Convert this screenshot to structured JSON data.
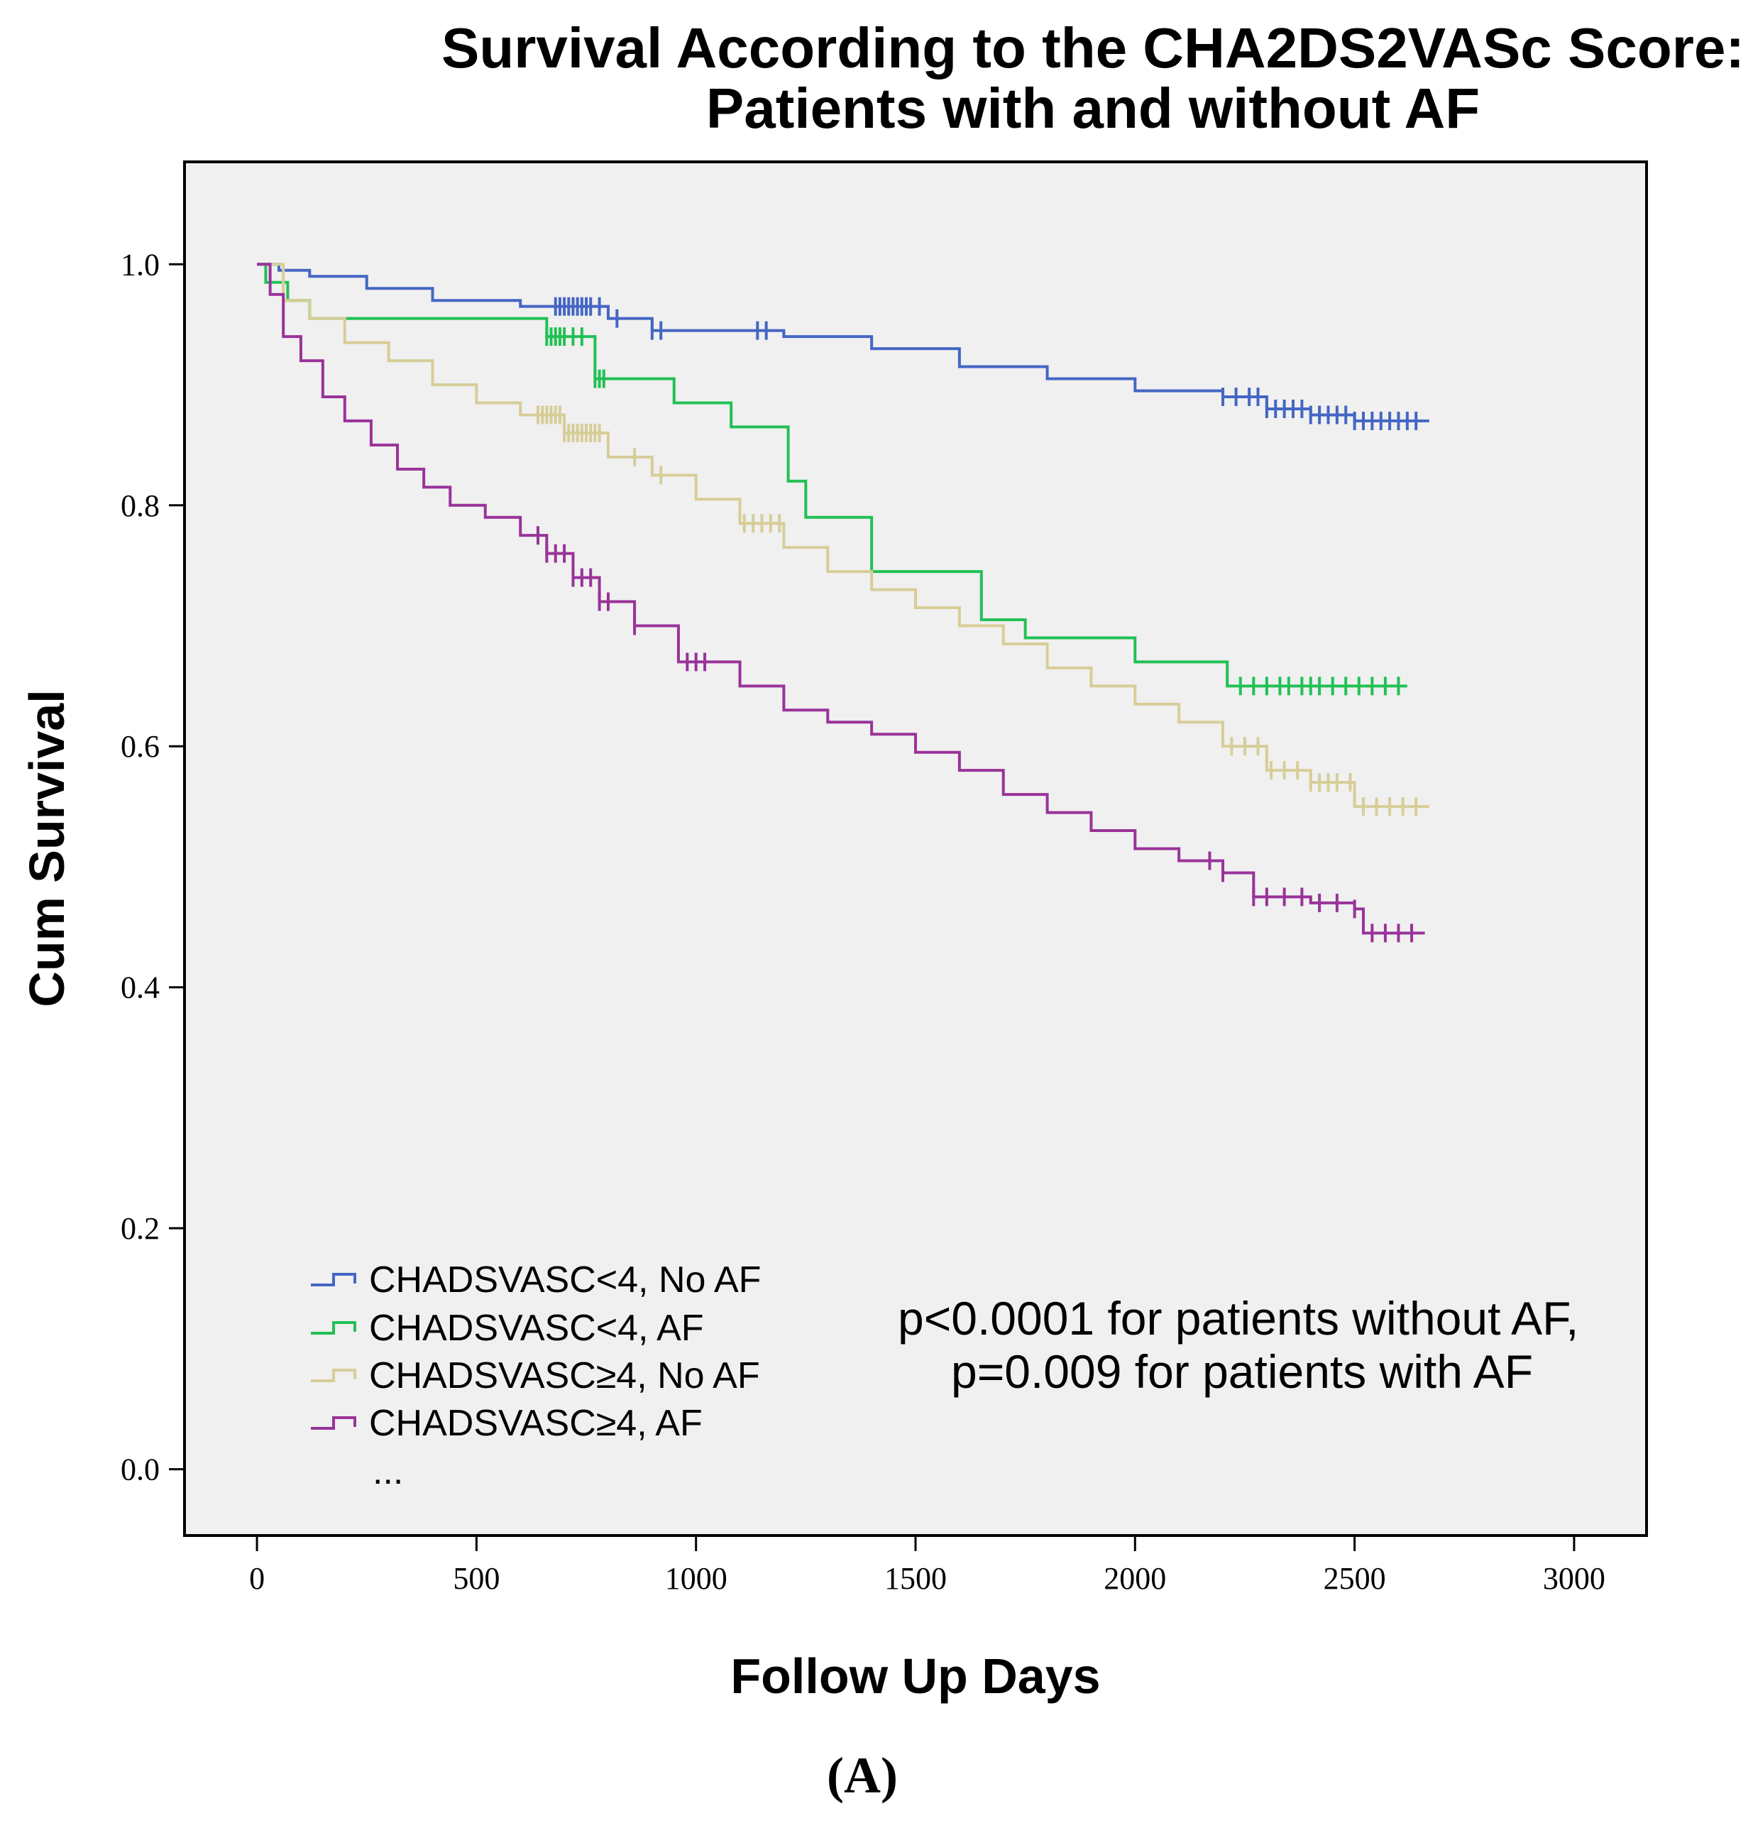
{
  "chart_data": {
    "type": "line",
    "subtype": "kaplan-meier",
    "title_line1": "Survival According to the CHA2DS2VASc Score:",
    "title_line2": "Patients with and without AF",
    "xlabel": "Follow Up Days",
    "ylabel": "Cum Survival",
    "xlim": [
      -165,
      3165
    ],
    "ylim": [
      -0.055,
      1.085
    ],
    "x_ticks": [
      0,
      500,
      1000,
      1500,
      2000,
      2500,
      3000
    ],
    "x_tick_labels": [
      "0",
      "500",
      "1000",
      "1500",
      "2000",
      "2500",
      "3000"
    ],
    "y_ticks": [
      0.0,
      0.2,
      0.4,
      0.6,
      0.8,
      1.0
    ],
    "y_tick_labels": [
      "0.0",
      "0.2",
      "0.4",
      "0.6",
      "0.8",
      "1.0"
    ],
    "grid": false,
    "legend_position": "bottom-left",
    "legend_extra": "...",
    "annotation_line1": "p<0.0001 for patients without AF,",
    "annotation_line2": "p=0.009 for patients with AF",
    "caption": "(A)",
    "series": [
      {
        "name": "CHADSVASC<4, No AF",
        "color": "#4466c4",
        "x": [
          0,
          50,
          120,
          250,
          400,
          600,
          800,
          900,
          1200,
          1400,
          1600,
          1800,
          2000,
          2200,
          2300,
          2400,
          2500,
          2670
        ],
        "y": [
          1.0,
          0.995,
          0.99,
          0.98,
          0.97,
          0.965,
          0.955,
          0.945,
          0.94,
          0.93,
          0.915,
          0.905,
          0.895,
          0.89,
          0.88,
          0.875,
          0.87,
          0.87
        ],
        "censor_x": [
          680,
          690,
          700,
          710,
          720,
          730,
          740,
          750,
          760,
          780,
          820,
          900,
          920,
          1140,
          1160,
          2200,
          2230,
          2260,
          2280,
          2300,
          2320,
          2340,
          2360,
          2380,
          2400,
          2420,
          2440,
          2460,
          2480,
          2500,
          2520,
          2540,
          2560,
          2580,
          2600,
          2620,
          2640
        ]
      },
      {
        "name": "CHADSVASC<4, AF",
        "color": "#22c055",
        "x": [
          0,
          20,
          70,
          120,
          660,
          770,
          950,
          1080,
          1210,
          1250,
          1400,
          1650,
          1750,
          2000,
          2210,
          2620
        ],
        "y": [
          1.0,
          0.985,
          0.97,
          0.955,
          0.94,
          0.905,
          0.885,
          0.865,
          0.82,
          0.79,
          0.745,
          0.705,
          0.69,
          0.67,
          0.65,
          0.65
        ],
        "censor_x": [
          660,
          670,
          680,
          690,
          700,
          720,
          740,
          770,
          780,
          790,
          2240,
          2270,
          2300,
          2330,
          2350,
          2380,
          2400,
          2420,
          2450,
          2480,
          2510,
          2540,
          2570,
          2600
        ]
      },
      {
        "name": "CHADSVASC≥4, No AF",
        "color": "#d7cd98",
        "x": [
          0,
          60,
          120,
          200,
          300,
          400,
          500,
          600,
          700,
          800,
          900,
          1000,
          1100,
          1200,
          1300,
          1400,
          1500,
          1600,
          1700,
          1800,
          1900,
          2000,
          2100,
          2200,
          2300,
          2400,
          2500,
          2670
        ],
        "y": [
          1.0,
          0.97,
          0.955,
          0.935,
          0.92,
          0.9,
          0.885,
          0.875,
          0.86,
          0.84,
          0.825,
          0.805,
          0.785,
          0.765,
          0.745,
          0.73,
          0.715,
          0.7,
          0.685,
          0.665,
          0.65,
          0.635,
          0.62,
          0.6,
          0.58,
          0.57,
          0.55,
          0.55
        ],
        "censor_x": [
          640,
          650,
          660,
          670,
          680,
          690,
          700,
          710,
          720,
          730,
          740,
          750,
          760,
          770,
          780,
          860,
          920,
          1110,
          1130,
          1150,
          1170,
          1190,
          2220,
          2250,
          2280,
          2310,
          2340,
          2370,
          2400,
          2420,
          2440,
          2460,
          2490,
          2520,
          2550,
          2580,
          2610,
          2640
        ]
      },
      {
        "name": "CHADSVASC≥4, AF",
        "color": "#993399",
        "x": [
          0,
          30,
          60,
          100,
          150,
          200,
          260,
          320,
          380,
          440,
          520,
          600,
          660,
          720,
          780,
          860,
          960,
          1100,
          1200,
          1300,
          1400,
          1500,
          1600,
          1700,
          1800,
          1900,
          2000,
          2100,
          2200,
          2270,
          2400,
          2500,
          2520,
          2660
        ],
        "y": [
          1.0,
          0.975,
          0.94,
          0.92,
          0.89,
          0.87,
          0.85,
          0.83,
          0.815,
          0.8,
          0.79,
          0.775,
          0.76,
          0.74,
          0.72,
          0.7,
          0.67,
          0.65,
          0.63,
          0.62,
          0.61,
          0.595,
          0.58,
          0.56,
          0.545,
          0.53,
          0.515,
          0.505,
          0.495,
          0.475,
          0.47,
          0.465,
          0.445,
          0.445
        ],
        "censor_x": [
          640,
          660,
          680,
          700,
          720,
          740,
          760,
          780,
          800,
          860,
          980,
          1000,
          1020,
          2170,
          2200,
          2270,
          2300,
          2340,
          2380,
          2420,
          2460,
          2500,
          2540,
          2570,
          2600,
          2630
        ]
      }
    ]
  }
}
